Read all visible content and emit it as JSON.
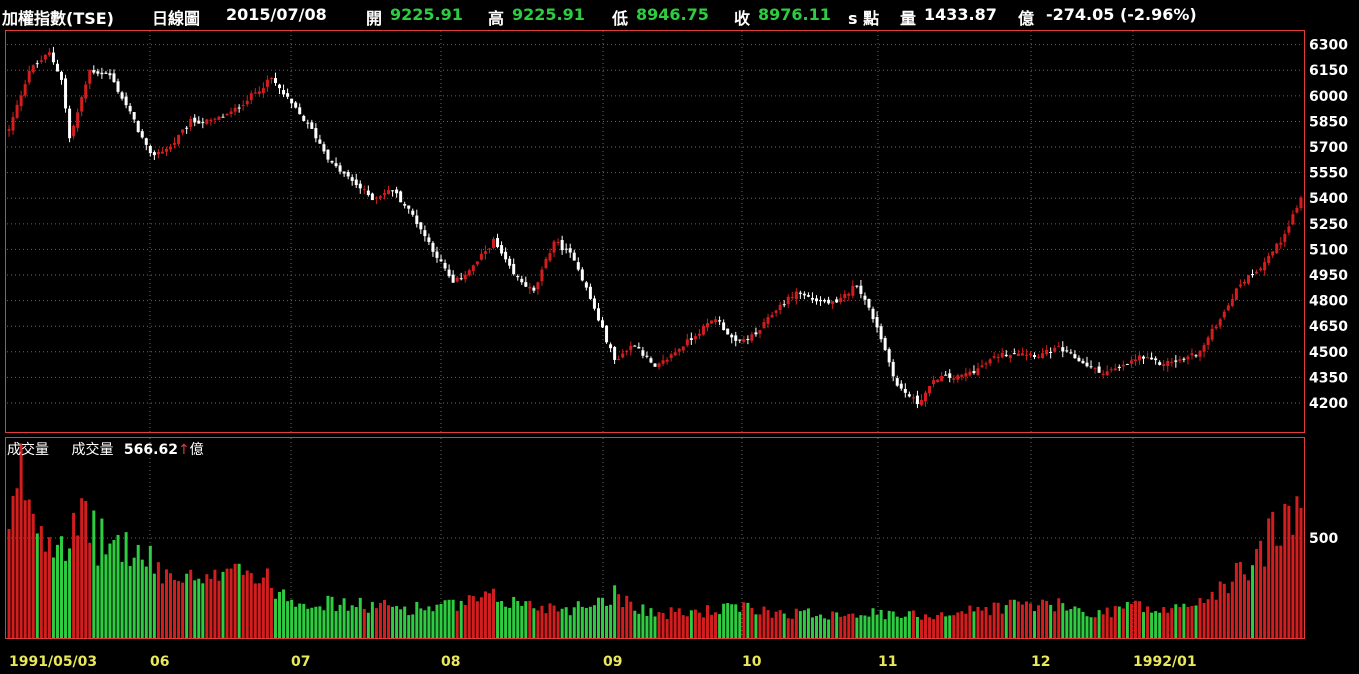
{
  "header": {
    "index_name": "加權指數(TSE)",
    "chart_kind": "日線圖",
    "date": "2015/07/08",
    "open_label": "開",
    "open_value": "9225.91",
    "high_label": "高",
    "high_value": "9225.91",
    "low_label": "低",
    "low_value": "8946.75",
    "close_label": "收",
    "close_value": "8976.11",
    "unit": "s 點",
    "volume_label": "量",
    "volume_value": "1433.87",
    "volume_unit": "億",
    "change": "-274.05 (-2.96%)"
  },
  "volume_panel": {
    "title": "成交量",
    "series_label": "成交量",
    "series_value": "566.62",
    "arrow": "↑",
    "unit": "億"
  },
  "colors": {
    "up": "#d21e1e",
    "down_candle": "#ffffff",
    "down_volume": "#2ecc40",
    "border": "#e03c3c",
    "date_label": "#e8e85a",
    "grid": "#666666"
  },
  "chart_data": [
    {
      "type": "candlestick",
      "y_ticks": [
        4200,
        4350,
        4500,
        4650,
        4800,
        4950,
        5100,
        5250,
        5400,
        5550,
        5700,
        5850,
        6000,
        6150,
        6300
      ],
      "ylim": [
        4030,
        6380
      ],
      "x_labels": [
        "1991/05/03",
        "06",
        "07",
        "08",
        "09",
        "10",
        "11",
        "12",
        "1992/01"
      ],
      "grid": true,
      "close_anchors": [
        [
          0,
          5800
        ],
        [
          5,
          6150
        ],
        [
          10,
          6250
        ],
        [
          13,
          6100
        ],
        [
          15,
          5750
        ],
        [
          17,
          5900
        ],
        [
          20,
          6150
        ],
        [
          25,
          6120
        ],
        [
          30,
          5900
        ],
        [
          35,
          5650
        ],
        [
          40,
          5700
        ],
        [
          45,
          5850
        ],
        [
          50,
          5850
        ],
        [
          55,
          5900
        ],
        [
          60,
          6000
        ],
        [
          65,
          6100
        ],
        [
          70,
          5950
        ],
        [
          75,
          5800
        ],
        [
          80,
          5600
        ],
        [
          85,
          5500
        ],
        [
          90,
          5400
        ],
        [
          95,
          5450
        ],
        [
          100,
          5300
        ],
        [
          105,
          5100
        ],
        [
          110,
          4900
        ],
        [
          115,
          5000
        ],
        [
          120,
          5150
        ],
        [
          125,
          4950
        ],
        [
          130,
          4850
        ],
        [
          135,
          5150
        ],
        [
          140,
          5050
        ],
        [
          145,
          4750
        ],
        [
          150,
          4450
        ],
        [
          155,
          4550
        ],
        [
          160,
          4400
        ],
        [
          165,
          4500
        ],
        [
          170,
          4600
        ],
        [
          175,
          4700
        ],
        [
          180,
          4550
        ],
        [
          185,
          4600
        ],
        [
          190,
          4750
        ],
        [
          195,
          4850
        ],
        [
          200,
          4800
        ],
        [
          205,
          4780
        ],
        [
          210,
          4900
        ],
        [
          215,
          4650
        ],
        [
          220,
          4300
        ],
        [
          225,
          4200
        ],
        [
          230,
          4350
        ],
        [
          235,
          4350
        ],
        [
          240,
          4400
        ],
        [
          245,
          4480
        ],
        [
          250,
          4500
        ],
        [
          255,
          4480
        ],
        [
          260,
          4520
        ],
        [
          265,
          4450
        ],
        [
          270,
          4380
        ],
        [
          275,
          4400
        ],
        [
          280,
          4470
        ],
        [
          285,
          4430
        ],
        [
          290,
          4450
        ],
        [
          295,
          4500
        ],
        [
          300,
          4700
        ],
        [
          305,
          4900
        ],
        [
          310,
          5000
        ],
        [
          315,
          5150
        ],
        [
          320,
          5400
        ]
      ]
    },
    {
      "type": "bar",
      "title": "成交量",
      "y_ticks": [
        500
      ],
      "volume_anchors": [
        [
          0,
          500
        ],
        [
          3,
          830
        ],
        [
          8,
          550
        ],
        [
          15,
          500
        ],
        [
          20,
          600
        ],
        [
          22,
          480
        ],
        [
          28,
          470
        ],
        [
          32,
          410
        ],
        [
          40,
          310
        ],
        [
          50,
          260
        ],
        [
          55,
          430
        ],
        [
          60,
          320
        ],
        [
          65,
          270
        ],
        [
          70,
          200
        ],
        [
          80,
          170
        ],
        [
          90,
          160
        ],
        [
          100,
          150
        ],
        [
          110,
          160
        ],
        [
          120,
          200
        ],
        [
          130,
          160
        ],
        [
          140,
          150
        ],
        [
          150,
          220
        ],
        [
          160,
          120
        ],
        [
          170,
          130
        ],
        [
          180,
          150
        ],
        [
          190,
          130
        ],
        [
          200,
          120
        ],
        [
          210,
          130
        ],
        [
          220,
          110
        ],
        [
          230,
          120
        ],
        [
          240,
          140
        ],
        [
          250,
          170
        ],
        [
          260,
          160
        ],
        [
          270,
          120
        ],
        [
          278,
          170
        ],
        [
          285,
          130
        ],
        [
          290,
          150
        ],
        [
          300,
          230
        ],
        [
          305,
          330
        ],
        [
          310,
          430
        ],
        [
          315,
          600
        ],
        [
          320,
          560
        ]
      ]
    }
  ]
}
